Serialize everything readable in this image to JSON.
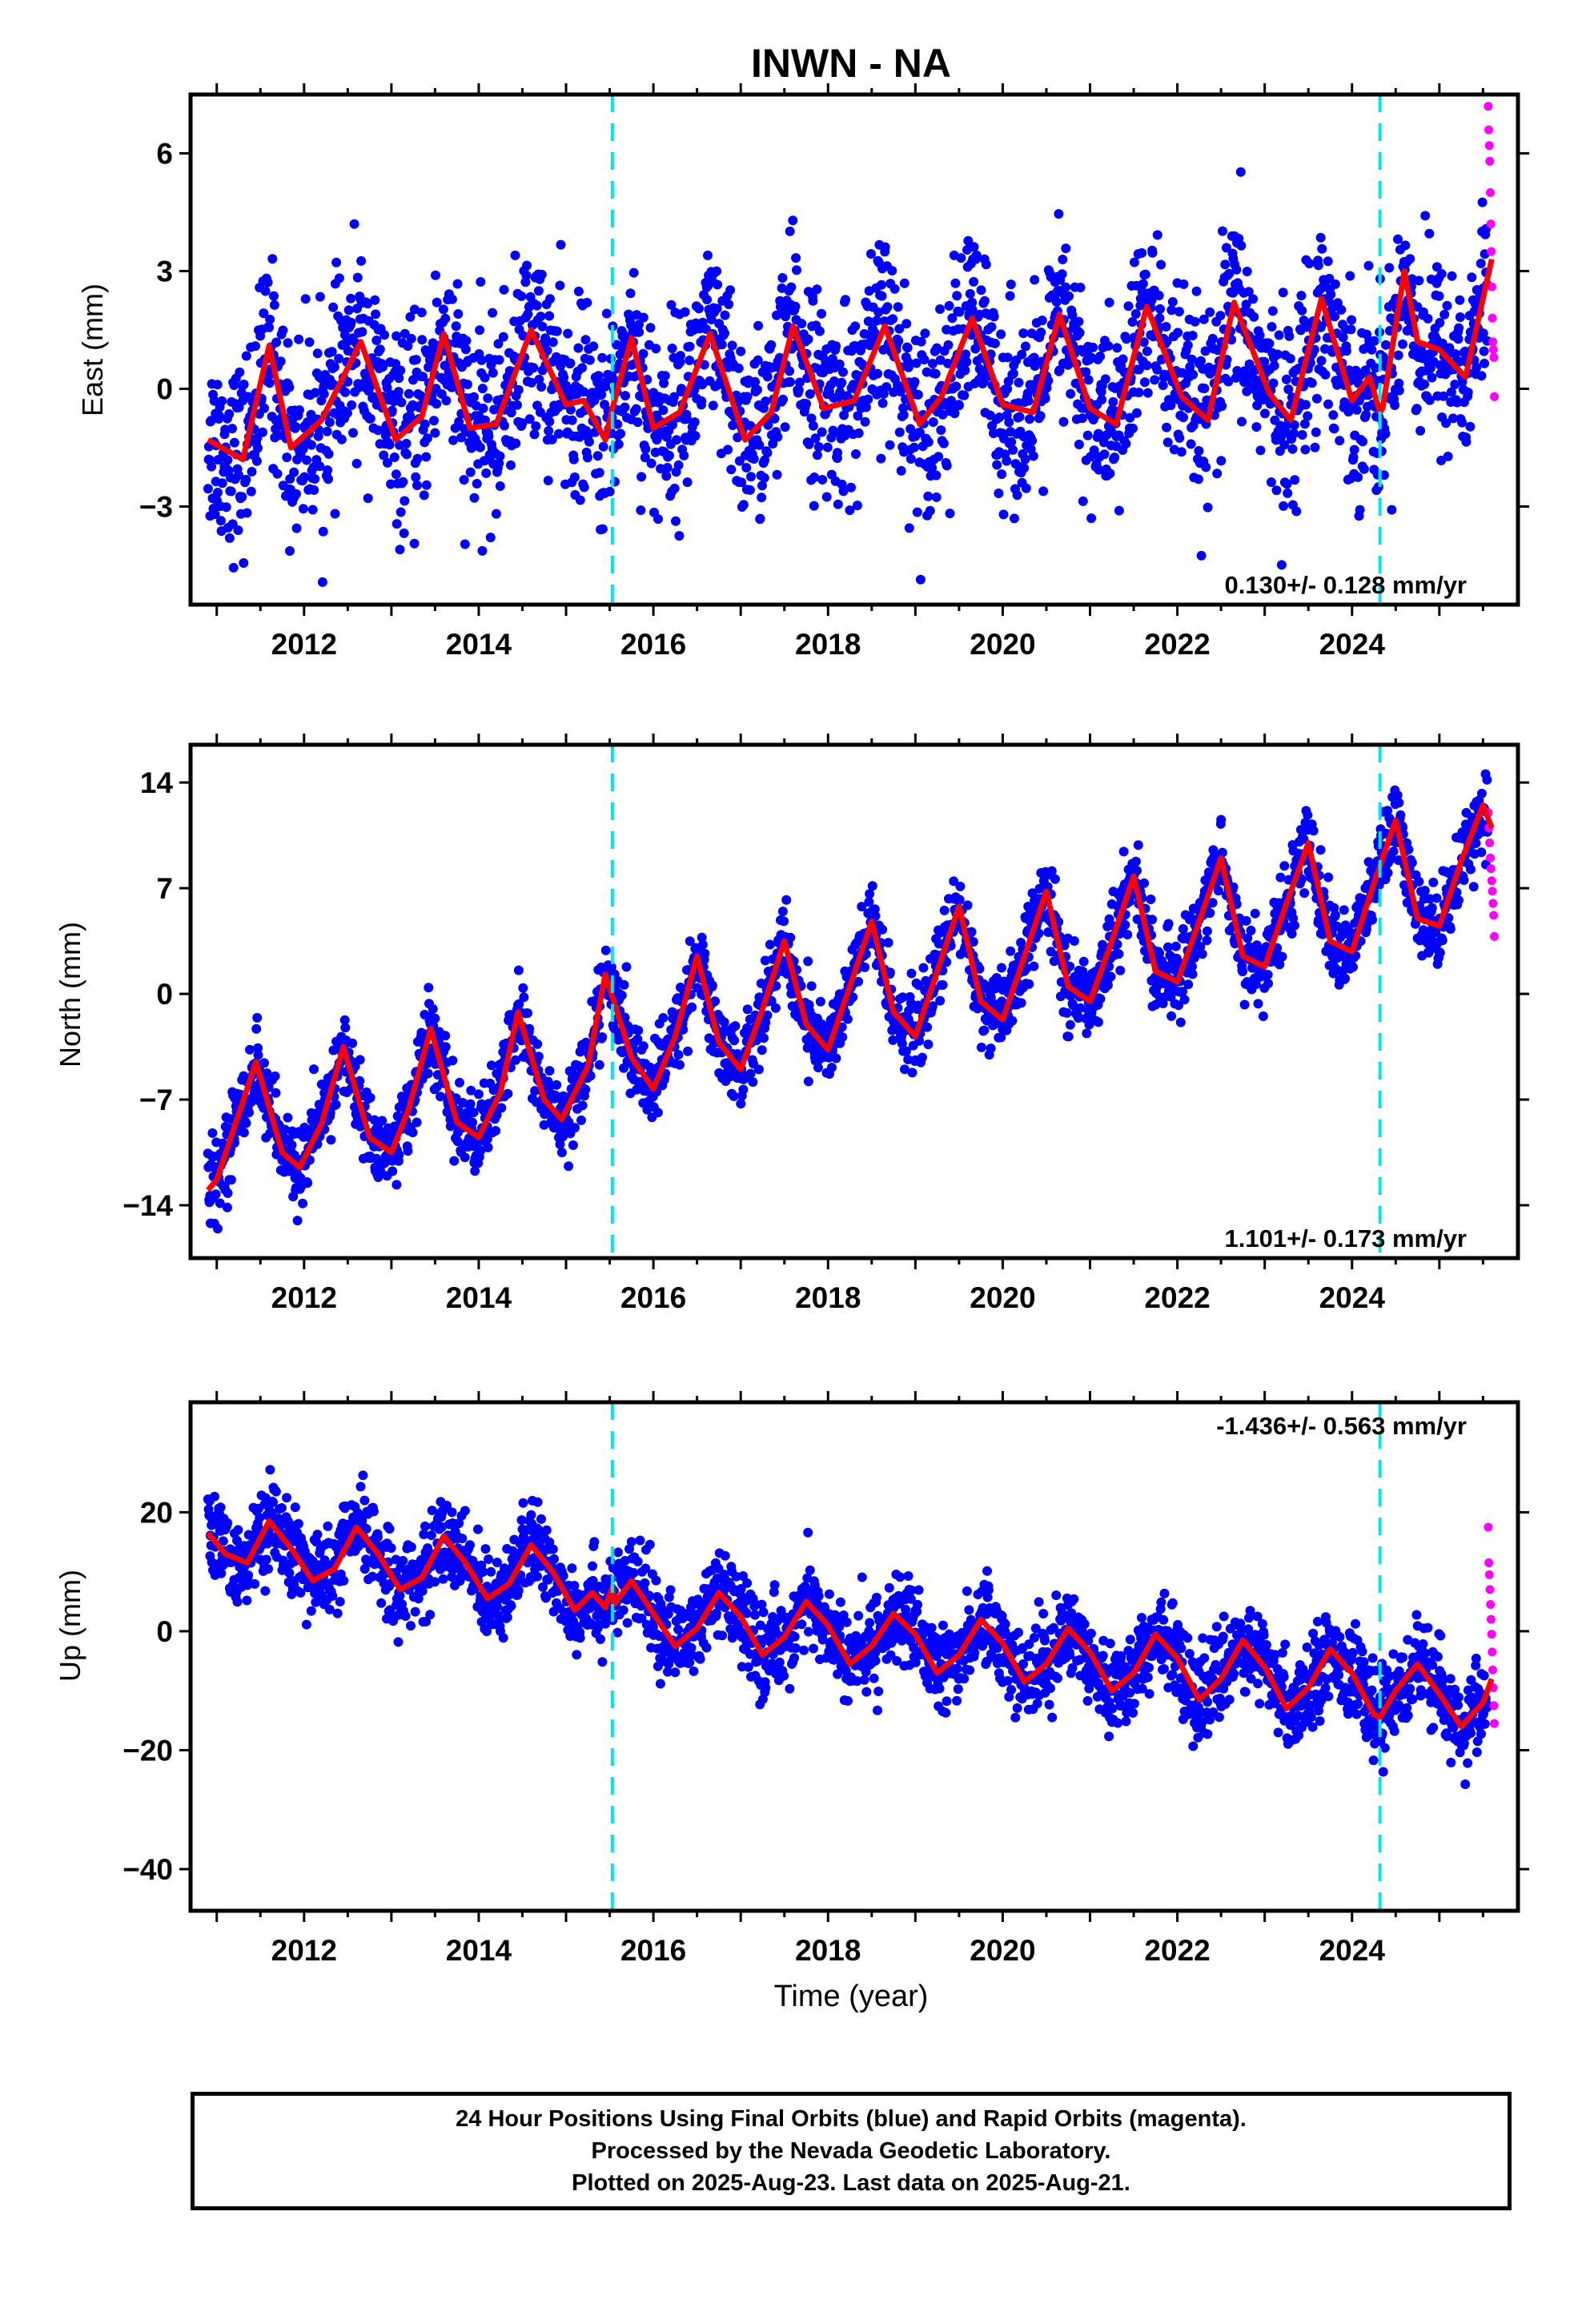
{
  "title": "INWN - NA",
  "colors": {
    "final_orbits": "#0000ff",
    "rapid_orbits": "#ff00ff",
    "model_fit": "#ff0000",
    "event_lines": "#00e5ee",
    "axes": "#000000"
  },
  "chart_data": [
    {
      "type": "scatter",
      "panel": "East",
      "ylabel": "East (mm)",
      "xlabel": "",
      "xlim": [
        2010.7,
        2025.9
      ],
      "ylim": [
        -5.5,
        7.5
      ],
      "xticks": [
        2012,
        2014,
        2016,
        2018,
        2020,
        2022,
        2024
      ],
      "yticks": [
        -3,
        0,
        3,
        6
      ],
      "ytick_labels": [
        "−3",
        "0",
        "3",
        "6"
      ],
      "grid": false,
      "event_lines_x": [
        2015.53,
        2024.32
      ],
      "velocity_label": "0.130+/- 0.128 mm/yr",
      "velocity_label_position": "bottom-right",
      "series": [
        {
          "name": "24 Hour Positions Using Final Orbits",
          "marker": "dot",
          "x_range": [
            2010.9,
            2025.55
          ],
          "trend": [
            -1.0,
            1.0
          ],
          "annual_amp": 1.1,
          "noise_sd": 1.2
        },
        {
          "name": "Rapid Orbits",
          "marker": "dot",
          "x_range": [
            2025.56,
            2025.63
          ],
          "y_values": [
            7.2,
            6.6,
            6.2,
            5.8,
            5.0,
            4.2,
            3.5,
            2.6,
            1.8,
            1.2,
            1.0,
            0.8,
            -0.2
          ]
        },
        {
          "name": "Model",
          "type": "line",
          "x": [
            2010.9,
            2011.3,
            2011.6,
            2011.85,
            2012.2,
            2012.65,
            2013.05,
            2013.35,
            2013.6,
            2013.9,
            2014.2,
            2014.6,
            2015.0,
            2015.2,
            2015.45,
            2015.53,
            2015.75,
            2016.0,
            2016.3,
            2016.65,
            2017.05,
            2017.35,
            2017.6,
            2017.95,
            2018.3,
            2018.65,
            2019.05,
            2019.3,
            2019.65,
            2020.0,
            2020.35,
            2020.65,
            2021.0,
            2021.3,
            2021.65,
            2022.05,
            2022.35,
            2022.65,
            2023.05,
            2023.3,
            2023.65,
            2024.0,
            2024.2,
            2024.32,
            2024.35,
            2024.6,
            2024.75,
            2025.0,
            2025.3,
            2025.6
          ],
          "y": [
            -1.3,
            -1.8,
            1.1,
            -1.5,
            -0.8,
            1.2,
            -1.3,
            -0.7,
            1.4,
            -1.0,
            -0.9,
            1.5,
            -0.4,
            -0.3,
            -1.3,
            -0.5,
            1.3,
            -1.0,
            -0.6,
            1.4,
            -1.3,
            -0.6,
            1.6,
            -0.5,
            -0.3,
            1.6,
            -0.9,
            -0.2,
            1.8,
            -0.4,
            -0.6,
            1.9,
            -0.5,
            -0.9,
            2.1,
            -0.2,
            -0.8,
            2.2,
            -0.1,
            -0.8,
            2.3,
            -0.3,
            0.3,
            -0.6,
            -0.5,
            3.0,
            1.2,
            1.0,
            0.3,
            3.3
          ]
        }
      ]
    },
    {
      "type": "scatter",
      "panel": "North",
      "ylabel": "North (mm)",
      "xlabel": "",
      "xlim": [
        2010.7,
        2025.9
      ],
      "ylim": [
        -17.5,
        16.5
      ],
      "xticks": [
        2012,
        2014,
        2016,
        2018,
        2020,
        2022,
        2024
      ],
      "yticks": [
        -14,
        -7,
        0,
        7,
        14
      ],
      "ytick_labels": [
        "−14",
        "−7",
        "0",
        "7",
        "14"
      ],
      "grid": false,
      "event_lines_x": [
        2015.53,
        2024.32
      ],
      "velocity_label": "1.101+/- 0.173 mm/yr",
      "velocity_label_position": "bottom-right",
      "series": [
        {
          "name": "24 Hour Positions Using Final Orbits",
          "marker": "dot",
          "x_range": [
            2010.9,
            2025.55
          ],
          "trend": [
            -12.8,
            8.8
          ],
          "annual_amp": 4.3,
          "noise_sd": 1.3
        },
        {
          "name": "Rapid Orbits",
          "marker": "dot",
          "x_range": [
            2025.56,
            2025.63
          ],
          "y_values": [
            12.0,
            11.0,
            10.0,
            9.0,
            8.3,
            7.5,
            6.8,
            6.0,
            5.2,
            3.8
          ]
        },
        {
          "name": "Model",
          "type": "line",
          "x": [
            2010.9,
            2011.0,
            2011.25,
            2011.45,
            2011.75,
            2011.95,
            2012.2,
            2012.45,
            2012.75,
            2013.0,
            2013.2,
            2013.45,
            2013.75,
            2014.0,
            2014.25,
            2014.45,
            2014.75,
            2014.95,
            2015.25,
            2015.45,
            2015.75,
            2016.0,
            2016.25,
            2016.5,
            2016.75,
            2017.0,
            2017.25,
            2017.5,
            2017.75,
            2018.0,
            2018.25,
            2018.5,
            2018.75,
            2019.0,
            2019.25,
            2019.5,
            2019.75,
            2020.0,
            2020.25,
            2020.5,
            2020.75,
            2021.0,
            2021.25,
            2021.5,
            2021.75,
            2022.0,
            2022.25,
            2022.5,
            2022.75,
            2023.0,
            2023.25,
            2023.5,
            2023.75,
            2024.0,
            2024.25,
            2024.5,
            2024.75,
            2025.0,
            2025.25,
            2025.5,
            2025.6
          ],
          "y": [
            -13.0,
            -12.3,
            -8.0,
            -4.5,
            -10.5,
            -11.5,
            -8.6,
            -3.5,
            -9.5,
            -10.5,
            -7.6,
            -2.3,
            -8.5,
            -9.5,
            -6.5,
            -1.2,
            -7.0,
            -8.3,
            -4.8,
            1.3,
            -4.2,
            -6.3,
            -2.8,
            2.5,
            -3.2,
            -5.0,
            -1.0,
            3.5,
            -2.0,
            -3.7,
            0.5,
            4.8,
            -1.2,
            -2.8,
            1.5,
            5.8,
            -0.5,
            -1.7,
            2.5,
            6.8,
            0.5,
            -0.5,
            3.5,
            7.8,
            1.5,
            0.8,
            4.8,
            9.0,
            2.5,
            1.8,
            6.0,
            10.0,
            3.5,
            2.8,
            7.3,
            11.5,
            5.0,
            4.5,
            8.8,
            12.5,
            11.0
          ]
        }
      ]
    },
    {
      "type": "scatter",
      "panel": "Up",
      "ylabel": "Up (mm)",
      "xlabel": "Time (year)",
      "xlim": [
        2010.7,
        2025.9
      ],
      "ylim": [
        -47.0,
        38.5
      ],
      "xticks": [
        2012,
        2014,
        2016,
        2018,
        2020,
        2022,
        2024
      ],
      "yticks": [
        -40,
        -20,
        0,
        20
      ],
      "ytick_labels": [
        "−40",
        "−20",
        "0",
        "20"
      ],
      "grid": false,
      "event_lines_x": [
        2015.53,
        2024.32
      ],
      "velocity_label": "-1.436+/- 0.563 mm/yr",
      "velocity_label_position": "top-right",
      "series": [
        {
          "name": "24 Hour Positions Using Final Orbits",
          "marker": "dot",
          "x_range": [
            2010.9,
            2025.55
          ],
          "trend": [
            14.0,
            -13.0
          ],
          "annual_amp": 5.0,
          "noise_sd": 3.6
        },
        {
          "name": "Rapid Orbits",
          "marker": "dot",
          "x_range": [
            2025.56,
            2025.63
          ],
          "y_values": [
            17.5,
            11.5,
            9.5,
            7.0,
            4.5,
            2.0,
            -0.5,
            -3.5,
            -6.5,
            -9.5,
            -12.5,
            -15.5
          ]
        },
        {
          "name": "Model",
          "type": "line",
          "x": [
            2010.9,
            2011.1,
            2011.35,
            2011.6,
            2011.85,
            2012.1,
            2012.35,
            2012.6,
            2012.85,
            2013.1,
            2013.35,
            2013.6,
            2013.85,
            2014.1,
            2014.35,
            2014.6,
            2014.85,
            2015.1,
            2015.3,
            2015.45,
            2015.53,
            2015.55,
            2015.75,
            2016.0,
            2016.25,
            2016.5,
            2016.75,
            2017.0,
            2017.25,
            2017.5,
            2017.75,
            2018.0,
            2018.25,
            2018.5,
            2018.75,
            2019.0,
            2019.25,
            2019.5,
            2019.75,
            2020.0,
            2020.25,
            2020.5,
            2020.75,
            2021.0,
            2021.25,
            2021.5,
            2021.75,
            2022.0,
            2022.25,
            2022.5,
            2022.75,
            2023.0,
            2023.25,
            2023.5,
            2023.75,
            2024.0,
            2024.25,
            2024.32,
            2024.5,
            2024.75,
            2025.0,
            2025.25,
            2025.5,
            2025.6
          ],
          "y": [
            16.5,
            13.0,
            11.5,
            18.5,
            14.0,
            8.5,
            10.5,
            17.5,
            13.0,
            7.0,
            9.0,
            16.0,
            11.5,
            5.5,
            8.0,
            14.5,
            10.0,
            3.5,
            6.5,
            4.0,
            7.5,
            4.5,
            8.5,
            3.0,
            -2.5,
            0.5,
            6.5,
            2.5,
            -4.0,
            -1.0,
            5.0,
            1.0,
            -5.5,
            -2.5,
            3.0,
            -0.5,
            -7.0,
            -4.0,
            2.0,
            -2.0,
            -8.5,
            -5.5,
            0.5,
            -3.5,
            -10.0,
            -7.0,
            -0.5,
            -4.5,
            -11.5,
            -8.0,
            -1.5,
            -6.0,
            -13.0,
            -9.5,
            -3.0,
            -7.0,
            -14.0,
            -14.5,
            -10.0,
            -5.5,
            -10.5,
            -16.0,
            -12.0,
            -8.0
          ]
        }
      ]
    }
  ],
  "footer": {
    "line1": "24 Hour Positions Using Final Orbits (blue) and Rapid Orbits (magenta).",
    "line2": "Processed by the Nevada Geodetic Laboratory.",
    "line3": "Plotted on 2025-Aug-23. Last data on 2025-Aug-21."
  }
}
